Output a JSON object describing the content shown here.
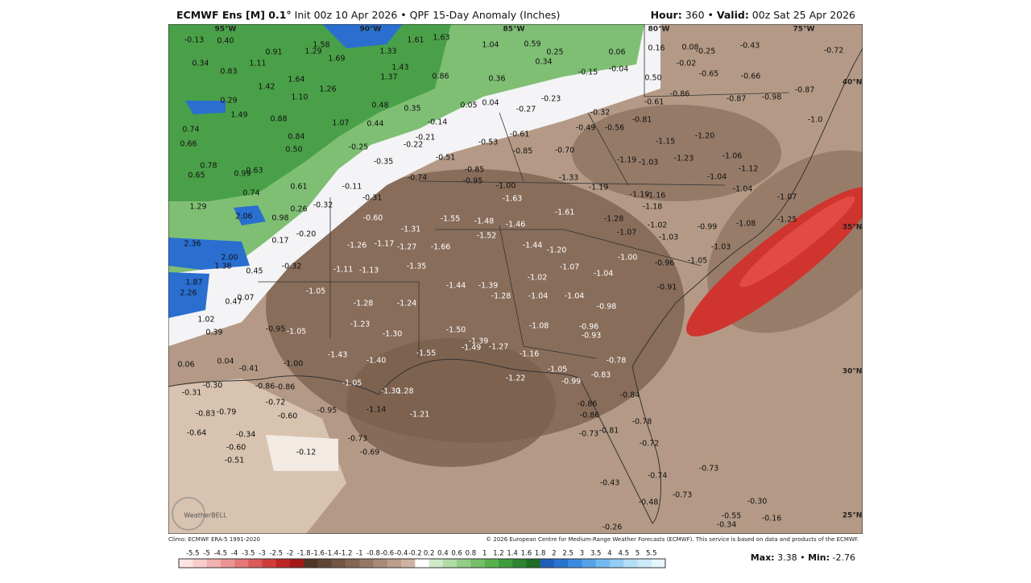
{
  "header": {
    "left": [
      {
        "text": "ECMWF Ens [M] 0.1°",
        "bold": true
      },
      {
        "text": " Init 00z 10 Apr 2026 • QPF 15-Day Anomaly (Inches)",
        "bold": false
      }
    ],
    "right": [
      {
        "text": "Hour:",
        "bold": true
      },
      {
        "text": " 360 • ",
        "bold": false
      },
      {
        "text": "Valid:",
        "bold": true
      },
      {
        "text": " 00z Sat 25 Apr 2026",
        "bold": false
      }
    ]
  },
  "map": {
    "lat_lon": [
      "95°W",
      "90°W",
      "85°W",
      "80°W",
      "75°W",
      "40°N",
      "35°N",
      "30°N",
      "25°N"
    ],
    "labels": [
      "-0.13",
      "0.40",
      "0.91",
      "1.58",
      "1.29",
      "1.69",
      "1.33",
      "1.61",
      "1.63",
      "1.04",
      "0.59",
      "0.25",
      "0.34",
      "0.06",
      "0.16",
      "0.08",
      "-0.25",
      "-0.43",
      "-0.72",
      "0.34",
      "1.11",
      "1.43",
      "1.37",
      "0.86",
      "0.36",
      "-0.15",
      "-0.04",
      "-0.02",
      "-0.65",
      "-0.66",
      "0.83",
      "1.64",
      "0.50",
      "1.42",
      "1.26",
      "1.10",
      "-0.86",
      "-0.87",
      "-0.98",
      "-0.87",
      "-0.61",
      "0.48",
      "0.35",
      "0.05",
      "0.04",
      "-0.27",
      "-0.23",
      "0.29",
      "1.49",
      "0.88",
      "1.07",
      "0.44",
      "-0.14",
      "-0.32",
      "-0.81",
      "-1.0",
      "0.74",
      "0.84",
      "-0.56",
      "-0.49",
      "-1.20",
      "0.66",
      "0.50",
      "-0.25",
      "-0.22",
      "-0.21",
      "-0.53",
      "-0.61",
      "-1.15",
      "-0.85",
      "-0.70",
      "-0.51",
      "-1.19",
      "-1.03",
      "-1.23",
      "-1.06",
      "-1.12",
      "0.78",
      "0.63",
      "0.99",
      "0.65",
      "-0.35",
      "-0.85",
      "-0.95",
      "-0.74",
      "-1.00",
      "-1.33",
      "-1.04",
      "0.74",
      "0.61",
      "-0.11",
      "-1.19",
      "-1.19",
      "-1.16",
      "-1.04",
      "-1.07",
      "-0.31",
      "-1.63",
      "-1.18",
      "1.29",
      "-0.32",
      "0.26",
      "-1.61",
      "-1.28",
      "2.06",
      "0.98",
      "-0.60",
      "-1.55",
      "-1.48",
      "-1.46",
      "-1.02",
      "-0.99",
      "-1.08",
      "-1.25",
      "-1.31",
      "-1.07",
      "-0.20",
      "-1.52",
      "-1.03",
      "0.17",
      "-1.26",
      "-1.17",
      "-1.27",
      "-1.66",
      "-1.44",
      "-1.20",
      "-1.03",
      "2.36",
      "2.00",
      "-1.00",
      "-0.96",
      "-1.05",
      "-0.32",
      "-1.35",
      "-1.07",
      "1.38",
      "0.45",
      "-1.11",
      "-1.13",
      "-1.04",
      "-1.02",
      "1.87",
      "-1.44",
      "-1.39",
      "-0.91",
      "2.26",
      "-1.05",
      "-1.04",
      "-1.04",
      "-1.28",
      "0.47",
      "0.07",
      "-1.28",
      "-1.24",
      "-0.98",
      "1.02",
      "-1.23",
      "-1.08",
      "-0.96",
      "-0.93",
      "0.39",
      "-0.95",
      "-1.05",
      "-1.30",
      "-1.50",
      "-1.39",
      "-1.49",
      "-1.27",
      "-1.43",
      "-1.55",
      "-1.16",
      "-1.40",
      "-0.78",
      "0.06",
      "0.04",
      "-1.00",
      "-0.41",
      "-1.05",
      "-0.83",
      "-1.22",
      "-1.05",
      "-0.99",
      "-0.30",
      "-0.86",
      "-0.86",
      "-1.30",
      "1.28",
      "-0.31",
      "-0.84",
      "-0.72",
      "-0.86",
      "-0.95",
      "-1.14",
      "-0.83",
      "-0.79",
      "-0.60",
      "-1.21",
      "-0.86",
      "-0.78",
      "-0.64",
      "-0.34",
      "-0.81",
      "-0.73",
      "-0.73",
      "-0.72",
      "-0.60",
      "-0.69",
      "-0.12",
      "-0.51",
      "-0.73",
      "-0.74",
      "-0.43",
      "-0.73",
      "-0.48",
      "-0.30",
      "-0.55",
      "-0.16",
      "-0.34",
      "-0.26"
    ]
  },
  "logo": "WeatherBELL",
  "footer": {
    "left": "Climo: ECMWF ERA-5 1991-2020",
    "right": "© 2026 European Centre for Medium-Range Weather Forecasts (ECMWF). This service is based on data and products of the ECMWF."
  },
  "colorbar": {
    "labels": [
      "-5.5",
      "-5",
      "-4.5",
      "-4",
      "-3.5",
      "-3",
      "-2.5",
      "-2",
      "-1.8",
      "-1.6",
      "-1.4",
      "-1.2",
      "-1",
      "-0.8",
      "-0.6",
      "-0.4",
      "-0.2",
      "0.2",
      "0.4",
      "0.6",
      "0.8",
      "1",
      "1.2",
      "1.4",
      "1.6",
      "1.8",
      "2",
      "2.5",
      "3",
      "3.5",
      "4",
      "4.5",
      "5",
      "5.5"
    ],
    "colors": [
      "#fde4e4",
      "#f9cccc",
      "#f3b0b0",
      "#ec9494",
      "#e57878",
      "#dc5a5a",
      "#d03c3c",
      "#bd2424",
      "#a51818",
      "#4e3628",
      "#604535",
      "#725544",
      "#846654",
      "#967765",
      "#a88a78",
      "#bb9e8c",
      "#cdb3a3",
      "#ffffff",
      "#cfe8c8",
      "#b1dba6",
      "#93cd86",
      "#75bf68",
      "#58b04d",
      "#3f9c3c",
      "#2d8530",
      "#1f6d26",
      "#1e5fb8",
      "#2874cf",
      "#3a8ae0",
      "#56a2ea",
      "#74b8f0",
      "#93ccf4",
      "#b3def8",
      "#cdeafb",
      "#e4f6fc"
    ]
  },
  "stats": [
    {
      "text": "Max:",
      "bold": true
    },
    {
      "text": " 3.38 • ",
      "bold": false
    },
    {
      "text": "Min:",
      "bold": true
    },
    {
      "text": " -2.76",
      "bold": false
    }
  ]
}
